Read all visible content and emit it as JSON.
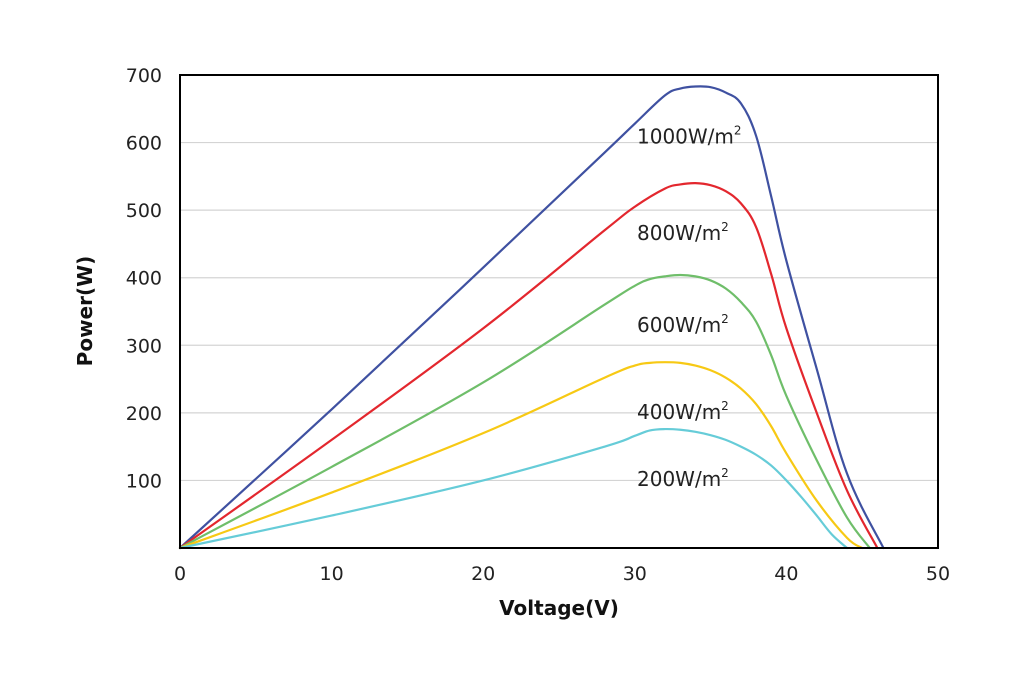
{
  "chart_data": {
    "type": "line",
    "xlabel": "Voltage(V)",
    "ylabel": "Power(W)",
    "xlim": [
      0,
      50
    ],
    "ylim": [
      0,
      700
    ],
    "xticks": [
      "0",
      "10",
      "20",
      "30",
      "40",
      "50"
    ],
    "yticks": [
      "100",
      "200",
      "300",
      "400",
      "500",
      "600",
      "700"
    ],
    "grid": true,
    "series": [
      {
        "name": "1000W/m²",
        "color": "#3f51a1",
        "x": [
          0,
          10,
          20,
          28,
          30,
          32,
          33,
          34,
          35,
          36,
          37,
          38,
          39,
          40,
          42,
          44,
          46.4
        ],
        "y": [
          0,
          205,
          415,
          585,
          628,
          670,
          680,
          683,
          682,
          674,
          658,
          610,
          520,
          425,
          265,
          110,
          0
        ]
      },
      {
        "name": "800W/m²",
        "color": "#e3272e",
        "x": [
          0,
          10,
          20,
          28,
          30,
          32,
          33,
          34,
          35,
          36,
          37,
          38,
          39,
          40,
          42,
          44,
          46
        ],
        "y": [
          0,
          160,
          325,
          470,
          505,
          532,
          538,
          540,
          537,
          528,
          510,
          475,
          405,
          325,
          200,
          85,
          0
        ]
      },
      {
        "name": "600W/m²",
        "color": "#6fbe6a",
        "x": [
          0,
          10,
          20,
          28,
          30,
          31,
          32,
          33,
          34,
          35,
          36,
          37,
          38,
          39,
          40,
          42,
          44,
          45.5
        ],
        "y": [
          0,
          120,
          245,
          360,
          388,
          398,
          402,
          404,
          402,
          396,
          384,
          364,
          335,
          285,
          225,
          130,
          45,
          0
        ]
      },
      {
        "name": "400W/m²",
        "color": "#f7c914",
        "x": [
          0,
          10,
          20,
          28,
          30,
          31,
          32,
          33,
          34,
          35,
          36,
          37,
          38,
          39,
          40,
          42,
          44,
          45
        ],
        "y": [
          0,
          82,
          170,
          252,
          270,
          274,
          275,
          274,
          270,
          263,
          252,
          236,
          213,
          180,
          140,
          70,
          15,
          0
        ]
      },
      {
        "name": "200W/m²",
        "color": "#66ccd8",
        "x": [
          0,
          10,
          20,
          28,
          30,
          31,
          32,
          33,
          34,
          35,
          36,
          37,
          38,
          39,
          40,
          41,
          42,
          43,
          44
        ],
        "y": [
          0,
          48,
          100,
          150,
          166,
          174,
          176,
          175,
          172,
          167,
          160,
          150,
          138,
          122,
          100,
          75,
          48,
          20,
          0
        ]
      }
    ]
  }
}
